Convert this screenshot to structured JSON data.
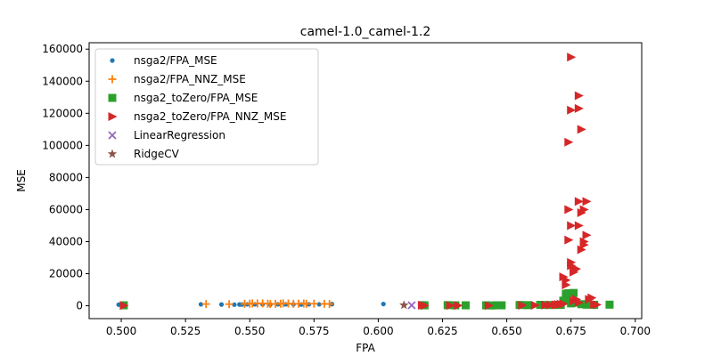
{
  "chart_data": {
    "type": "scatter",
    "title": "camel-1.0_camel-1.2",
    "xlabel": "FPA",
    "ylabel": "MSE",
    "xlim": [
      0.4875,
      0.7025
    ],
    "ylim": [
      -8000,
      164000
    ],
    "xticks": [
      0.5,
      0.525,
      0.55,
      0.575,
      0.6,
      0.625,
      0.65,
      0.675,
      0.7
    ],
    "xtick_labels": [
      "0.500",
      "0.525",
      "0.550",
      "0.575",
      "0.600",
      "0.625",
      "0.650",
      "0.675",
      "0.700"
    ],
    "yticks": [
      0,
      20000,
      40000,
      60000,
      80000,
      100000,
      120000,
      140000,
      160000
    ],
    "ytick_labels": [
      "0",
      "20000",
      "40000",
      "60000",
      "80000",
      "100000",
      "120000",
      "140000",
      "160000"
    ],
    "grid": false,
    "legend_position": "top-left",
    "series": [
      {
        "name": "nsga2/FPA_MSE",
        "marker": "dot",
        "color": "#1f77b4",
        "points": [
          [
            0.499,
            700
          ],
          [
            0.531,
            900
          ],
          [
            0.539,
            800
          ],
          [
            0.544,
            700
          ],
          [
            0.546,
            800
          ],
          [
            0.547,
            800
          ],
          [
            0.549,
            900
          ],
          [
            0.552,
            900
          ],
          [
            0.555,
            900
          ],
          [
            0.558,
            800
          ],
          [
            0.561,
            900
          ],
          [
            0.564,
            900
          ],
          [
            0.567,
            900
          ],
          [
            0.57,
            800
          ],
          [
            0.573,
            900
          ],
          [
            0.577,
            900
          ],
          [
            0.582,
            1000
          ],
          [
            0.602,
            1100
          ]
        ]
      },
      {
        "name": "nsga2/FPA_NNZ_MSE",
        "marker": "plus",
        "color": "#ff7f0e",
        "points": [
          [
            0.533,
            1100
          ],
          [
            0.542,
            1000
          ],
          [
            0.548,
            1200
          ],
          [
            0.55,
            1300
          ],
          [
            0.551,
            1500
          ],
          [
            0.553,
            1400
          ],
          [
            0.555,
            1500
          ],
          [
            0.557,
            1300
          ],
          [
            0.558,
            1100
          ],
          [
            0.56,
            1200
          ],
          [
            0.562,
            1300
          ],
          [
            0.563,
            1500
          ],
          [
            0.565,
            1400
          ],
          [
            0.567,
            1200
          ],
          [
            0.569,
            1300
          ],
          [
            0.571,
            1400
          ],
          [
            0.572,
            1200
          ],
          [
            0.575,
            1300
          ],
          [
            0.579,
            1200
          ],
          [
            0.581,
            1100
          ]
        ]
      },
      {
        "name": "nsga2_toZero/FPA_MSE",
        "marker": "square",
        "color": "#2ca02c",
        "points": [
          [
            0.501,
            300
          ],
          [
            0.617,
            400
          ],
          [
            0.618,
            300
          ],
          [
            0.627,
            400
          ],
          [
            0.63,
            300
          ],
          [
            0.634,
            300
          ],
          [
            0.642,
            300
          ],
          [
            0.644,
            200
          ],
          [
            0.646,
            300
          ],
          [
            0.648,
            300
          ],
          [
            0.655,
            500
          ],
          [
            0.658,
            400
          ],
          [
            0.663,
            600
          ],
          [
            0.666,
            500
          ],
          [
            0.669,
            500
          ],
          [
            0.671,
            600
          ],
          [
            0.672,
            3200
          ],
          [
            0.673,
            7500
          ],
          [
            0.673,
            5000
          ],
          [
            0.674,
            7800
          ],
          [
            0.675,
            1500
          ],
          [
            0.676,
            8000
          ],
          [
            0.677,
            2000
          ],
          [
            0.679,
            1000
          ],
          [
            0.681,
            700
          ],
          [
            0.684,
            600
          ],
          [
            0.69,
            700
          ]
        ]
      },
      {
        "name": "nsga2_toZero/FPA_NNZ_MSE",
        "marker": "triangle-right",
        "color": "#d62728",
        "points": [
          [
            0.501,
            200
          ],
          [
            0.617,
            300
          ],
          [
            0.618,
            200
          ],
          [
            0.628,
            200
          ],
          [
            0.631,
            200
          ],
          [
            0.643,
            200
          ],
          [
            0.656,
            300
          ],
          [
            0.661,
            300
          ],
          [
            0.665,
            400
          ],
          [
            0.667,
            500
          ],
          [
            0.669,
            600
          ],
          [
            0.67,
            800
          ],
          [
            0.671,
            1000
          ],
          [
            0.672,
            1200
          ],
          [
            0.672,
            18000
          ],
          [
            0.673,
            16000
          ],
          [
            0.673,
            13000
          ],
          [
            0.674,
            60000
          ],
          [
            0.674,
            41000
          ],
          [
            0.674,
            102000
          ],
          [
            0.675,
            122000
          ],
          [
            0.675,
            155000
          ],
          [
            0.675,
            50000
          ],
          [
            0.675,
            25000
          ],
          [
            0.675,
            27000
          ],
          [
            0.676,
            22000
          ],
          [
            0.676,
            21000
          ],
          [
            0.676,
            3000
          ],
          [
            0.677,
            23000
          ],
          [
            0.677,
            4000
          ],
          [
            0.678,
            123000
          ],
          [
            0.678,
            131000
          ],
          [
            0.678,
            65000
          ],
          [
            0.678,
            50000
          ],
          [
            0.678,
            2000
          ],
          [
            0.679,
            110000
          ],
          [
            0.679,
            35000
          ],
          [
            0.679,
            58000
          ],
          [
            0.68,
            60000
          ],
          [
            0.68,
            40000
          ],
          [
            0.68,
            38000
          ],
          [
            0.681,
            65000
          ],
          [
            0.681,
            44000
          ],
          [
            0.682,
            4000
          ],
          [
            0.683,
            5000
          ],
          [
            0.684,
            1000
          ],
          [
            0.685,
            700
          ]
        ]
      },
      {
        "name": "LinearRegression",
        "marker": "x",
        "color": "#9467bd",
        "points": [
          [
            0.613,
            300
          ]
        ]
      },
      {
        "name": "RidgeCV",
        "marker": "star",
        "color": "#8c564b",
        "points": [
          [
            0.61,
            400
          ]
        ]
      }
    ]
  }
}
